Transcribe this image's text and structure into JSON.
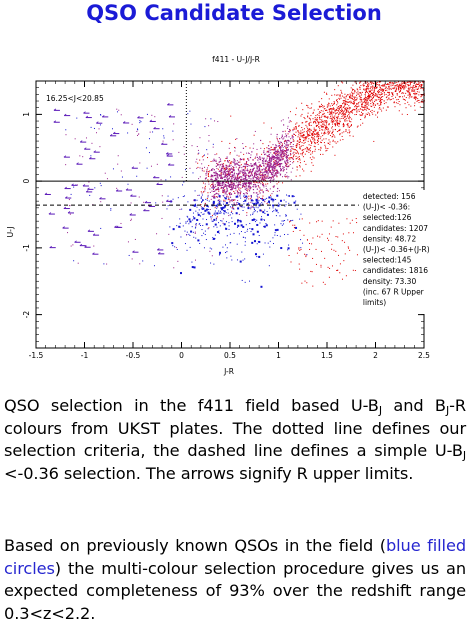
{
  "page_title": "QSO Candidate Selection",
  "caption": {
    "p1": {
      "t1": "QSO selection in the f411 field based U-B",
      "s1": "J",
      "t2": " and B",
      "s2": "J",
      "t3": "-R colours from UKST plates.  The dotted line defines our selection criteria, the dashed line defines a simple U-B",
      "s3": "J",
      "t4": " <-0.36 selection.  The arrows signify R upper limits."
    },
    "p2": {
      "t1": "Based on previously known QSOs in the field (",
      "link": "blue filled circles",
      "t2": ") the multi-colour selection procedure gives us an expected completeness of 93% over the redshift range 0.3<z<2.2."
    }
  },
  "colors": {
    "title": "#1b1bd6",
    "stars_red": "#e00000",
    "stars_purple": "#9a1f8c",
    "qso_blue": "#1414d2"
  },
  "chart_data": {
    "type": "scatter",
    "title": "f411 - U-J/J-R",
    "xlabel": "J-R",
    "ylabel": "U-J",
    "xlim": [
      -1.5,
      2.5
    ],
    "ylim": [
      -2.5,
      1.5
    ],
    "xticks": [
      {
        "v": -1.5,
        "label": "-1.5"
      },
      {
        "v": -1,
        "label": "-1"
      },
      {
        "v": -0.5,
        "label": "-0.5"
      },
      {
        "v": 0,
        "label": "0"
      },
      {
        "v": 0.5,
        "label": "0.5"
      },
      {
        "v": 1,
        "label": "1"
      },
      {
        "v": 1.5,
        "label": "1.5"
      },
      {
        "v": 2,
        "label": "2"
      },
      {
        "v": 2.5,
        "label": "2.5"
      }
    ],
    "yticks": [
      {
        "v": 1,
        "label": "1"
      },
      {
        "v": 0,
        "label": "0"
      },
      {
        "v": -1,
        "label": "-1"
      },
      {
        "v": -2,
        "label": "-2"
      }
    ],
    "magnitude_label": "16.25<J<20.85",
    "solid_line_y": 0,
    "dashed_line_y": -0.36,
    "dotted_selection": {
      "vertical_x": 0.05,
      "y_top": 1.5,
      "y_bottom": 0
    },
    "annotations": [
      "detected: 156",
      "(U-J)< -0.36:",
      "selected:126",
      "candidates: 1207",
      "density: 48.72",
      "(U-J)< -0.36+(J-R)",
      "selected:145",
      "candidates: 1816",
      "density: 73.30",
      "(inc. 67 R Upper",
      "limits)"
    ],
    "series": [
      {
        "name": "stellar locus",
        "color": "#e00000",
        "trend": [
          [
            0.3,
            0.0
          ],
          [
            0.8,
            0.1
          ],
          [
            1.3,
            0.7
          ],
          [
            1.8,
            1.2
          ],
          [
            2.2,
            1.5
          ]
        ]
      },
      {
        "name": "QSOs",
        "color": "#1414d2",
        "region": {
          "x": [
            0.0,
            1.1
          ],
          "y": [
            -1.3,
            -0.2
          ]
        }
      }
    ]
  }
}
